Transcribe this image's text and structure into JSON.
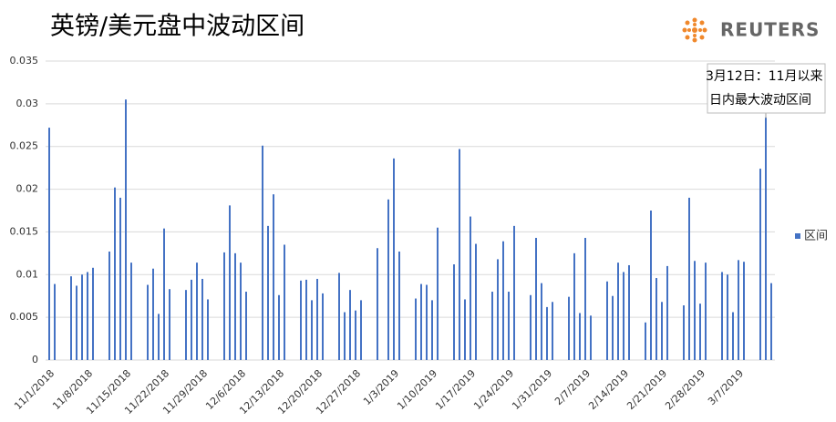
{
  "chart_data": {
    "type": "bar",
    "title": "英镑/美元盘中波动区间",
    "logo": "REUTERS",
    "annotation": [
      "3月12日：11月以来",
      "日内最大波动区间"
    ],
    "categories": [
      "11/1/2018",
      null,
      null,
      null,
      null,
      null,
      null,
      "11/8/2018",
      null,
      null,
      null,
      null,
      null,
      null,
      "11/15/2018",
      null,
      null,
      null,
      null,
      null,
      null,
      "11/22/2018",
      null,
      null,
      null,
      null,
      null,
      null,
      "11/29/2018",
      null,
      null,
      null,
      null,
      null,
      null,
      "12/6/2018",
      null,
      null,
      null,
      null,
      null,
      null,
      "12/13/2018",
      null,
      null,
      null,
      null,
      null,
      null,
      "12/20/2018",
      null,
      null,
      null,
      null,
      null,
      null,
      "12/27/2018",
      null,
      null,
      null,
      null,
      null,
      null,
      "1/3/2019",
      null,
      null,
      null,
      null,
      null,
      null,
      "1/10/2019",
      null,
      null,
      null,
      null,
      null,
      null,
      "1/17/2019",
      null,
      null,
      null,
      null,
      null,
      null,
      "1/24/2019",
      null,
      null,
      null,
      null,
      null,
      null,
      "1/31/2019",
      null,
      null,
      null,
      null,
      null,
      null,
      "2/7/2019",
      null,
      null,
      null,
      null,
      null,
      null,
      "2/14/2019",
      null,
      null,
      null,
      null,
      null,
      null,
      "2/21/2019",
      null,
      null,
      null,
      null,
      null,
      null,
      "2/28/2019",
      null,
      null,
      null,
      null,
      null,
      null,
      "3/7/2019",
      null,
      null,
      null,
      null,
      null,
      null
    ],
    "series": [
      {
        "name": "区间",
        "color": "#4472c4",
        "values": [
          0.0272,
          0.0089,
          null,
          null,
          0.0098,
          0.0087,
          0.01,
          0.0103,
          0.0108,
          null,
          null,
          0.0127,
          0.0202,
          0.019,
          0.0305,
          0.0114,
          null,
          null,
          0.0088,
          0.0107,
          0.0054,
          0.0154,
          0.0083,
          null,
          null,
          0.0082,
          0.0094,
          0.0114,
          0.0095,
          0.0071,
          null,
          null,
          0.0126,
          0.0181,
          0.0125,
          0.0114,
          0.008,
          null,
          null,
          0.0251,
          0.0157,
          0.0194,
          0.0076,
          0.0135,
          null,
          null,
          0.0093,
          0.0094,
          0.007,
          0.0095,
          0.0078,
          null,
          null,
          0.0102,
          0.0056,
          0.0082,
          0.0058,
          0.007,
          null,
          null,
          0.0131,
          null,
          0.0188,
          0.0236,
          0.0127,
          null,
          null,
          0.0072,
          0.0089,
          0.0088,
          0.007,
          0.0155,
          null,
          null,
          0.0112,
          0.0247,
          0.0071,
          0.0168,
          0.0136,
          null,
          null,
          0.008,
          0.0118,
          0.0139,
          0.008,
          0.0157,
          null,
          null,
          0.0076,
          0.0143,
          0.009,
          0.0062,
          0.0068,
          null,
          null,
          0.0074,
          0.0125,
          0.0055,
          0.0143,
          0.0052,
          null,
          null,
          0.0092,
          0.0075,
          0.0114,
          0.0103,
          0.0111,
          null,
          null,
          0.0044,
          0.0175,
          0.0096,
          0.0068,
          0.011,
          null,
          null,
          0.0064,
          0.019,
          0.0116,
          0.0066,
          0.0114,
          null,
          null,
          0.0103,
          0.01,
          0.0056,
          0.0117,
          0.0115,
          null,
          null,
          0.0224,
          0.0284,
          0.009
        ]
      }
    ],
    "ylim": [
      0,
      0.035
    ],
    "yticks": [
      0,
      0.005,
      0.01,
      0.015,
      0.02,
      0.025,
      0.03,
      0.035
    ],
    "grid": true,
    "legend": "right"
  }
}
